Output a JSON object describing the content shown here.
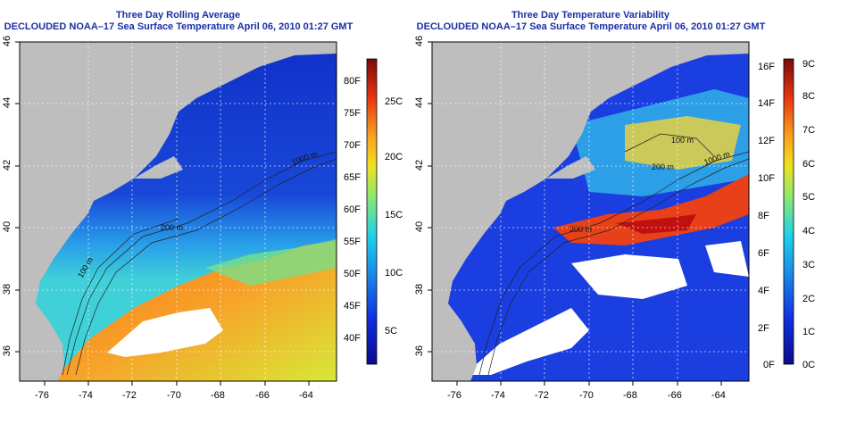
{
  "maps": [
    {
      "title": "Three Day Rolling Average",
      "subtitle": "DECLOUDED NOAA–17 Sea Surface Temperature April 06, 2010 01:27 GMT",
      "x_ticks": [
        "-76",
        "-74",
        "-72",
        "-70",
        "-68",
        "-66",
        "-64"
      ],
      "y_ticks": [
        "46",
        "44",
        "42",
        "40",
        "38",
        "36"
      ],
      "contours": [
        "200 m",
        "1000 m",
        "100 m"
      ],
      "colorbar_f": [
        "80F",
        "75F",
        "70F",
        "65F",
        "60F",
        "55F",
        "50F",
        "45F",
        "40F"
      ],
      "colorbar_c": [
        "25C",
        "20C",
        "15C",
        "10C",
        "5C"
      ]
    },
    {
      "title": "Three Day Temperature Variability",
      "subtitle": "DECLOUDED NOAA–17 Sea Surface Temperature April 06, 2010 01:27 GMT",
      "x_ticks": [
        "-76",
        "-74",
        "-72",
        "-70",
        "-68",
        "-66",
        "-64"
      ],
      "y_ticks": [
        "46",
        "44",
        "42",
        "40",
        "38",
        "36"
      ],
      "contours": [
        "200 m",
        "100 m",
        "200 m",
        "1000 m"
      ],
      "colorbar_f": [
        "16F",
        "14F",
        "12F",
        "10F",
        "8F",
        "6F",
        "4F",
        "2F",
        "0F"
      ],
      "colorbar_c": [
        "9C",
        "8C",
        "7C",
        "6C",
        "5C",
        "4C",
        "3C",
        "2C",
        "1C",
        "0C"
      ]
    }
  ],
  "colors": {
    "land": "#bebebe",
    "title": "#1b2fa6",
    "grid": "#ffffff"
  }
}
